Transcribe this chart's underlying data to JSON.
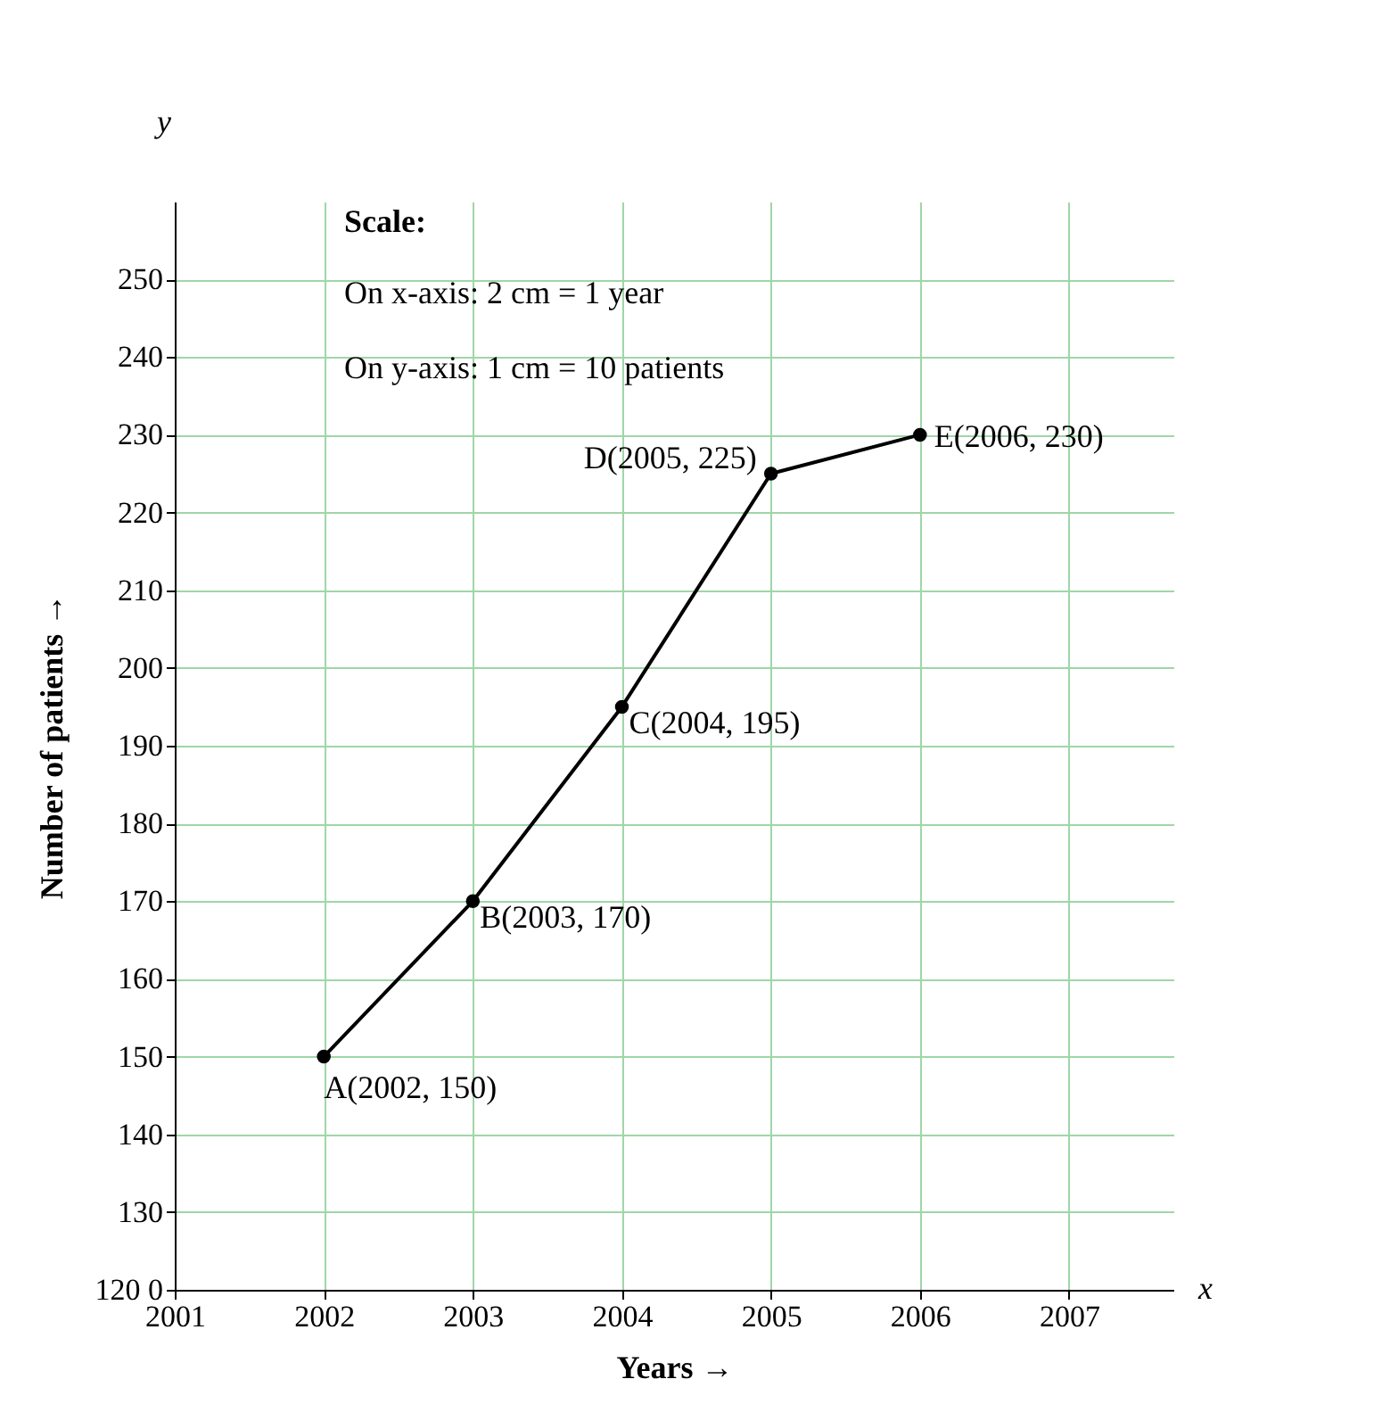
{
  "chart_data": {
    "type": "line",
    "xlabel": "Years →",
    "ylabel": "Number of patients →",
    "x": [
      2002,
      2003,
      2004,
      2005,
      2006
    ],
    "series": [
      {
        "color": "#000000",
        "values": [
          150,
          170,
          195,
          225,
          230
        ]
      }
    ],
    "xlim": [
      2001,
      2007.7
    ],
    "xticks": [
      2001,
      2002,
      2003,
      2004,
      2005,
      2006,
      2007
    ],
    "ylim": [
      120,
      260
    ],
    "yticks": [
      {
        "value": 120,
        "label": "120  0"
      },
      130,
      140,
      150,
      160,
      170,
      180,
      190,
      200,
      210,
      220,
      230,
      240,
      250
    ],
    "grid": true,
    "marker": "circle",
    "line_style": "solid",
    "annotations": [
      {
        "text": "A(2002, 150)",
        "x": 2002,
        "y": 150
      },
      {
        "text": "B(2003, 170)",
        "x": 2003,
        "y": 170
      },
      {
        "text": "C(2004, 195)",
        "x": 2004,
        "y": 195
      },
      {
        "text": "D(2005, 225)",
        "x": 2005,
        "y": 225
      },
      {
        "text": "E(2006, 230)",
        "x": 2006,
        "y": 230
      },
      "Scale:",
      "On x-axis: 2 cm = 1 year",
      "On y-axis: 1 cm = 10 patients",
      "x",
      "y"
    ]
  }
}
